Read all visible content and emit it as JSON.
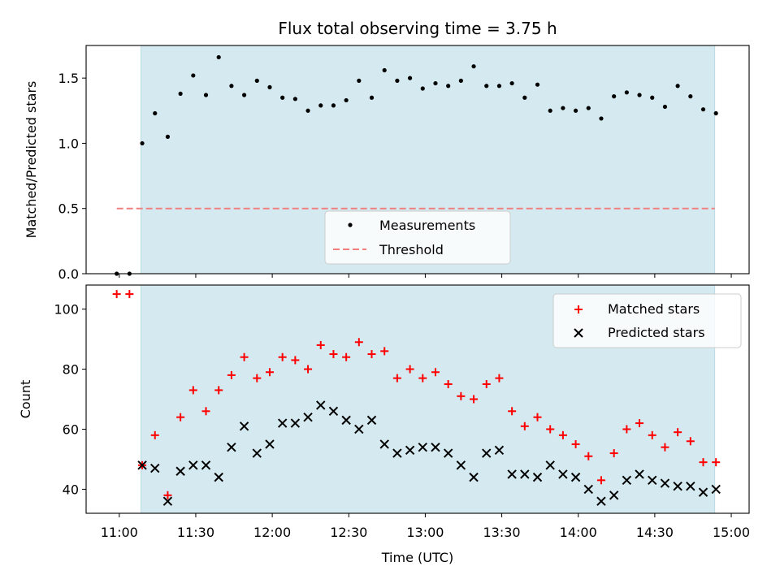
{
  "title": "Flux total observing time = 3.75 h",
  "xlabel": "Time (UTC)",
  "x_ticks": [
    "11:00",
    "11:30",
    "12:00",
    "12:30",
    "13:00",
    "13:30",
    "14:00",
    "14:30",
    "15:00"
  ],
  "x_tick_minutes": [
    0,
    30,
    60,
    90,
    120,
    150,
    180,
    210,
    240
  ],
  "x_range_minutes": [
    -13,
    247
  ],
  "shaded_span_minutes": [
    8.5,
    233.5
  ],
  "colors": {
    "shade": "#d4eaf0",
    "threshold": "#f08080",
    "matched": "#ff0000",
    "predicted": "#000000",
    "points": "#000000"
  },
  "chart_data": [
    {
      "type": "scatter",
      "ylabel": "Matched/Predicted stars",
      "ylim": [
        0.0,
        1.75
      ],
      "y_ticks": [
        "0.0",
        "0.5",
        "1.0",
        "1.5"
      ],
      "y_tick_values": [
        0.0,
        0.5,
        1.0,
        1.5
      ],
      "threshold": {
        "value": 0.5,
        "x_range_minutes": [
          -1,
          233.5
        ]
      },
      "legend": {
        "placement": "lower-center",
        "entries": [
          "Measurements",
          "Threshold"
        ]
      },
      "series": [
        {
          "name": "Measurements",
          "x_minutes": [
            -1,
            4,
            9,
            14,
            19,
            24,
            29,
            34,
            39,
            44,
            49,
            54,
            59,
            64,
            69,
            74,
            79,
            84,
            89,
            94,
            99,
            104,
            109,
            114,
            119,
            124,
            129,
            134,
            139,
            144,
            149,
            154,
            159,
            164,
            169,
            174,
            179,
            184,
            189,
            194,
            199,
            204,
            209,
            214,
            219,
            224,
            229,
            234
          ],
          "values": [
            0.0,
            0.0,
            1.0,
            1.23,
            1.05,
            1.38,
            1.52,
            1.37,
            1.66,
            1.44,
            1.37,
            1.48,
            1.43,
            1.35,
            1.34,
            1.25,
            1.29,
            1.29,
            1.33,
            1.48,
            1.35,
            1.56,
            1.48,
            1.5,
            1.42,
            1.46,
            1.44,
            1.48,
            1.59,
            1.44,
            1.44,
            1.46,
            1.35,
            1.45,
            1.25,
            1.27,
            1.25,
            1.27,
            1.19,
            1.36,
            1.39,
            1.37,
            1.35,
            1.28,
            1.44,
            1.36,
            1.26,
            1.23
          ]
        }
      ]
    },
    {
      "type": "scatter",
      "ylabel": "Count",
      "ylim": [
        32,
        108
      ],
      "y_ticks": [
        "40",
        "60",
        "80",
        "100"
      ],
      "y_tick_values": [
        40,
        60,
        80,
        100
      ],
      "legend": {
        "placement": "upper-right",
        "entries": [
          "Matched stars",
          "Predicted stars"
        ]
      },
      "series": [
        {
          "name": "Matched stars",
          "marker": "+",
          "x_minutes": [
            -1,
            4,
            9,
            14,
            19,
            24,
            29,
            34,
            39,
            44,
            49,
            54,
            59,
            64,
            69,
            74,
            79,
            84,
            89,
            94,
            99,
            104,
            109,
            114,
            119,
            124,
            129,
            134,
            139,
            144,
            149,
            154,
            159,
            164,
            169,
            174,
            179,
            184,
            189,
            194,
            199,
            204,
            209,
            214,
            219,
            224,
            229,
            234
          ],
          "values": [
            105,
            105,
            48,
            58,
            38,
            64,
            73,
            66,
            73,
            78,
            84,
            77,
            79,
            84,
            83,
            80,
            88,
            85,
            84,
            89,
            85,
            86,
            77,
            80,
            77,
            79,
            75,
            71,
            70,
            75,
            77,
            66,
            61,
            64,
            60,
            58,
            55,
            51,
            43,
            52,
            60,
            62,
            58,
            54,
            59,
            56,
            49,
            49
          ]
        },
        {
          "name": "Predicted stars",
          "marker": "x",
          "x_minutes": [
            9,
            14,
            19,
            24,
            29,
            34,
            39,
            44,
            49,
            54,
            59,
            64,
            69,
            74,
            79,
            84,
            89,
            94,
            99,
            104,
            109,
            114,
            119,
            124,
            129,
            134,
            139,
            144,
            149,
            154,
            159,
            164,
            169,
            174,
            179,
            184,
            189,
            194,
            199,
            204,
            209,
            214,
            219,
            224,
            229,
            234
          ],
          "values": [
            48,
            47,
            36,
            46,
            48,
            48,
            44,
            54,
            61,
            52,
            55,
            62,
            62,
            64,
            68,
            66,
            63,
            60,
            63,
            55,
            52,
            53,
            54,
            54,
            52,
            48,
            44,
            52,
            53,
            45,
            45,
            44,
            48,
            45,
            44,
            40,
            36,
            38,
            43,
            45,
            43,
            42,
            41,
            41,
            39,
            40
          ]
        }
      ]
    }
  ]
}
